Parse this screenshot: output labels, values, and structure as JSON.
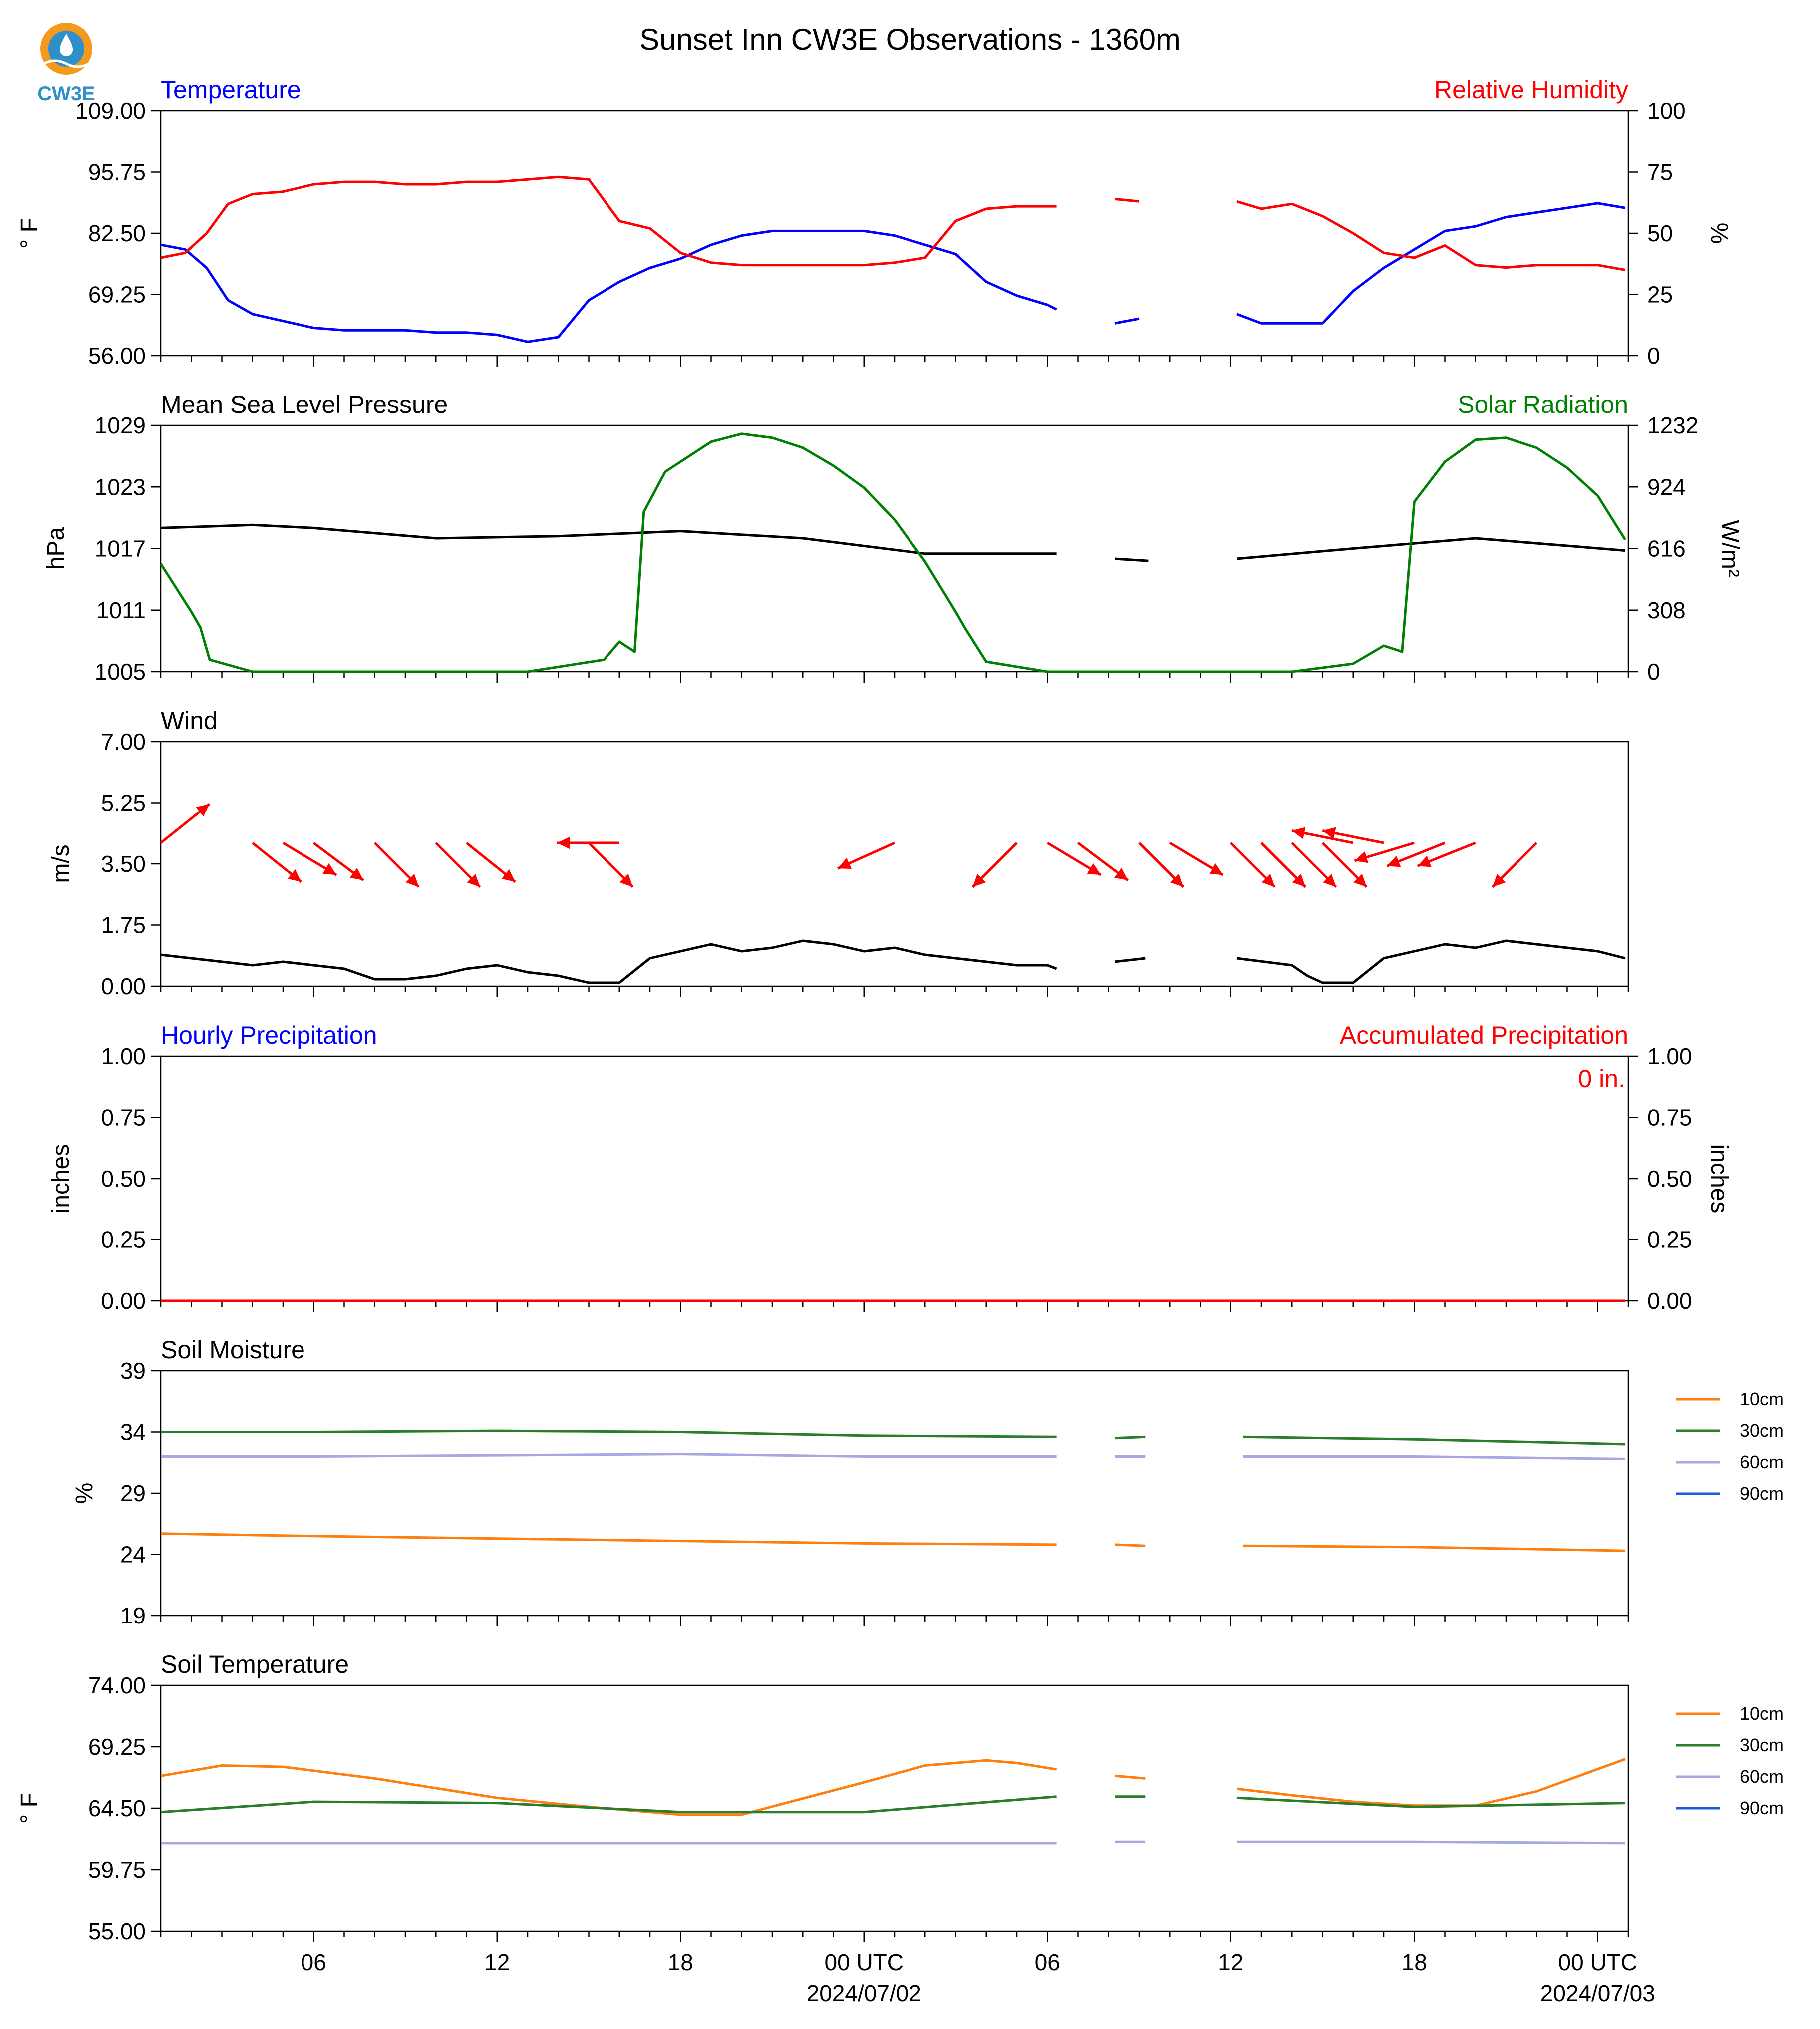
{
  "title": "Sunset Inn CW3E Observations - 1360m",
  "logo": {
    "text": "CW3E",
    "colors": {
      "sun": "#f39a1e",
      "drop": "#2e8fc9",
      "text": "#2e8fc9"
    }
  },
  "colors": {
    "temperature": "#0000ff",
    "humidity": "#ff0000",
    "pressure": "#000000",
    "solar": "#008000",
    "wind": "#000000",
    "wind_arrow": "#ff0000",
    "soil_10cm": "#ff7f0e",
    "soil_30cm": "#2a7d2a",
    "soil_60cm": "#a6a9e0",
    "soil_90cm": "#1f5bde"
  },
  "time_axis": {
    "start_hour": 1,
    "end_hour": 49,
    "tick_labels": [
      "06",
      "12",
      "18",
      "00 UTC",
      "06",
      "12",
      "18",
      "00 UTC"
    ],
    "tick_hours": [
      6,
      12,
      18,
      24,
      30,
      36,
      42,
      48
    ],
    "date_labels": [
      "2024/07/02",
      "2024/07/03"
    ]
  },
  "chart_data": [
    {
      "type": "line",
      "title_left": "Temperature",
      "title_right": "Relative Humidity",
      "ylabel_left": "° F",
      "ylabel_right": "%",
      "ylim_left": [
        56,
        109
      ],
      "ylim_right": [
        0,
        100
      ],
      "yticks_left": [
        "109.00",
        "95.75",
        "82.50",
        "69.25",
        "56.00"
      ],
      "yticks_right": [
        "100",
        "75",
        "50",
        "25",
        "0"
      ],
      "series": [
        {
          "name": "Temperature",
          "axis": "left",
          "x": [
            1,
            1.8,
            2.5,
            3.2,
            4,
            5,
            6,
            7,
            8,
            9,
            10,
            11,
            12,
            13,
            14,
            15,
            16,
            17,
            18,
            19,
            20,
            21,
            22,
            23,
            24,
            25,
            26,
            27,
            28,
            29,
            30,
            30.3,
            null,
            32.2,
            33,
            null,
            36.2,
            37,
            38,
            39,
            40,
            41,
            42,
            43,
            44,
            45,
            46,
            47,
            48,
            48.9
          ],
          "y": [
            80,
            79,
            75,
            68,
            65,
            63.5,
            62,
            61.5,
            61.5,
            61.5,
            61,
            61,
            60.5,
            59,
            60,
            68,
            72,
            75,
            77,
            80,
            82,
            83,
            83,
            83,
            83,
            82,
            80,
            78,
            72,
            69,
            67,
            66,
            null,
            63,
            64,
            null,
            65,
            63,
            63,
            63,
            70,
            75,
            79,
            83,
            84,
            86,
            87,
            88,
            89,
            88
          ]
        },
        {
          "name": "Relative Humidity",
          "axis": "right",
          "x": [
            1,
            1.8,
            2.5,
            3.2,
            4,
            5,
            6,
            7,
            8,
            9,
            10,
            11,
            12,
            13,
            14,
            15,
            16,
            17,
            18,
            19,
            20,
            21,
            22,
            23,
            24,
            25,
            26,
            27,
            28,
            29,
            30,
            30.3,
            null,
            32.2,
            33,
            null,
            36.2,
            37,
            38,
            39,
            40,
            41,
            42,
            43,
            44,
            45,
            46,
            47,
            48,
            48.9
          ],
          "y": [
            40,
            42,
            50,
            62,
            66,
            67,
            70,
            71,
            71,
            70,
            70,
            71,
            71,
            72,
            73,
            72,
            55,
            52,
            42,
            38,
            37,
            37,
            37,
            37,
            37,
            38,
            40,
            55,
            60,
            61,
            61,
            61,
            null,
            64,
            63,
            null,
            63,
            60,
            62,
            57,
            50,
            42,
            40,
            45,
            37,
            36,
            37,
            37,
            37,
            35
          ]
        }
      ]
    },
    {
      "type": "line",
      "title_left": "Mean Sea Level Pressure",
      "title_right": "Solar Radiation",
      "ylabel_left": "hPa",
      "ylabel_right": "W/m²",
      "ylim_left": [
        1005,
        1029
      ],
      "ylim_right": [
        0,
        1232
      ],
      "yticks_left": [
        "1029",
        "1023",
        "1017",
        "1011",
        "1005"
      ],
      "yticks_right": [
        "1232",
        "924",
        "616",
        "308",
        "0"
      ],
      "series": [
        {
          "name": "Mean Sea Level Pressure",
          "axis": "left",
          "x": [
            1,
            4,
            6,
            10,
            14,
            18,
            22,
            26,
            30,
            30.3,
            null,
            32.2,
            33.3,
            null,
            36.2,
            40,
            44,
            48.9
          ],
          "y": [
            1019,
            1019.3,
            1019,
            1018,
            1018.2,
            1018.7,
            1018,
            1016.5,
            1016.5,
            1016.5,
            null,
            1016,
            1015.8,
            null,
            1016,
            1017,
            1018,
            1016.8
          ]
        },
        {
          "name": "Solar Radiation",
          "axis": "right",
          "x": [
            1,
            2,
            2.3,
            2.6,
            4,
            6,
            10,
            13,
            15.5,
            16,
            16.5,
            16.8,
            17.5,
            19,
            20,
            21,
            22,
            23,
            24,
            25,
            26,
            27,
            27.3,
            28,
            30,
            33.3,
            36,
            38,
            40,
            41,
            41.6,
            42,
            43,
            44,
            45,
            46,
            47,
            48,
            48.9
          ],
          "y": [
            540,
            300,
            220,
            60,
            0,
            0,
            0,
            0,
            60,
            150,
            100,
            800,
            1000,
            1150,
            1190,
            1170,
            1120,
            1030,
            920,
            760,
            550,
            300,
            220,
            50,
            0,
            0,
            0,
            0,
            40,
            130,
            100,
            850,
            1050,
            1160,
            1170,
            1120,
            1020,
            880,
            660
          ]
        }
      ]
    },
    {
      "type": "line",
      "title_left": "Wind",
      "ylabel_left": "m/s",
      "ylim_left": [
        0,
        7
      ],
      "yticks_left": [
        "7.00",
        "5.25",
        "3.50",
        "1.75",
        "0.00"
      ],
      "series": [
        {
          "name": "Wind",
          "axis": "left",
          "x": [
            1,
            2,
            3,
            4,
            5,
            6,
            7,
            8,
            9,
            10,
            11,
            12,
            13,
            14,
            15,
            16,
            17,
            18,
            19,
            20,
            21,
            22,
            23,
            24,
            25,
            26,
            27,
            28,
            29,
            30,
            30.3,
            null,
            32.2,
            33.2,
            null,
            36.2,
            38,
            38.5,
            39,
            40,
            41,
            42,
            43,
            44,
            45,
            46,
            47,
            48,
            48.9
          ],
          "y": [
            0.9,
            0.8,
            0.7,
            0.6,
            0.7,
            0.6,
            0.5,
            0.2,
            0.2,
            0.3,
            0.5,
            0.6,
            0.4,
            0.3,
            0.1,
            0.1,
            0.8,
            1.0,
            1.2,
            1.0,
            1.1,
            1.3,
            1.2,
            1.0,
            1.1,
            0.9,
            0.8,
            0.7,
            0.6,
            0.6,
            0.5,
            null,
            0.7,
            0.8,
            null,
            0.8,
            0.6,
            0.3,
            0.1,
            0.1,
            0.8,
            1.0,
            1.2,
            1.1,
            1.3,
            1.2,
            1.1,
            1.0,
            0.8
          ]
        }
      ],
      "wind_arrows": {
        "x": [
          1,
          4,
          5,
          6,
          8,
          10,
          11,
          15,
          16,
          25,
          29,
          30,
          31,
          33,
          34,
          36,
          37,
          38,
          39,
          40,
          41,
          42,
          43,
          44,
          46
        ],
        "y_level": 4.1,
        "dx": [
          1,
          1,
          1,
          0.8,
          0.8,
          0.8,
          1,
          0.8,
          -1,
          -1,
          -0.8,
          1,
          0.8,
          0.8,
          1,
          0.8,
          0.8,
          0.8,
          0.8,
          -1,
          -1,
          -1,
          -1,
          -1,
          -0.8
        ],
        "dy": [
          0.8,
          -0.8,
          -0.6,
          -0.6,
          -0.8,
          -0.8,
          -0.8,
          -0.8,
          0,
          -0.45,
          -0.8,
          -0.6,
          -0.6,
          -0.8,
          -0.6,
          -0.8,
          -0.8,
          -0.8,
          -0.8,
          0.2,
          0.2,
          -0.3,
          -0.4,
          -0.4,
          -0.8
        ]
      }
    },
    {
      "type": "line",
      "title_left": "Hourly Precipitation",
      "title_right": "Accumulated Precipitation",
      "ylabel_left": "inches",
      "ylabel_right": "inches",
      "ylim_left": [
        0,
        1
      ],
      "ylim_right": [
        0,
        1
      ],
      "yticks_left": [
        "1.00",
        "0.75",
        "0.50",
        "0.25",
        "0.00"
      ],
      "yticks_right": [
        "1.00",
        "0.75",
        "0.50",
        "0.25",
        "0.00"
      ],
      "annotation": "0 in.",
      "series": [
        {
          "name": "Hourly Precipitation",
          "axis": "left",
          "x": [
            1,
            48.9
          ],
          "y": [
            0,
            0
          ]
        },
        {
          "name": "Accumulated Precipitation",
          "axis": "right",
          "x": [
            1,
            48.9
          ],
          "y": [
            0,
            0
          ]
        }
      ]
    },
    {
      "type": "line",
      "title_left": "Soil Moisture",
      "ylabel_left": "%",
      "ylim_left": [
        19,
        39
      ],
      "yticks_left": [
        "39",
        "34",
        "29",
        "24",
        "19"
      ],
      "legend": [
        "10cm",
        "30cm",
        "60cm",
        "90cm"
      ],
      "series": [
        {
          "name": "10cm",
          "axis": "left",
          "x": [
            1,
            6,
            12,
            18,
            24,
            30.3,
            null,
            32.2,
            33.2,
            null,
            36.4,
            42,
            48.9
          ],
          "y": [
            25.7,
            25.5,
            25.3,
            25.1,
            24.9,
            24.8,
            null,
            24.8,
            24.7,
            null,
            24.7,
            24.6,
            24.3
          ]
        },
        {
          "name": "30cm",
          "axis": "left",
          "x": [
            1,
            6,
            12,
            18,
            24,
            30.3,
            null,
            32.2,
            33.2,
            null,
            36.4,
            42,
            48.9
          ],
          "y": [
            34.0,
            34.0,
            34.1,
            34.0,
            33.7,
            33.6,
            null,
            33.5,
            33.6,
            null,
            33.6,
            33.4,
            33.0
          ]
        },
        {
          "name": "60cm",
          "axis": "left",
          "x": [
            1,
            6,
            12,
            18,
            24,
            30.3,
            null,
            32.2,
            33.2,
            null,
            36.4,
            42,
            48.9
          ],
          "y": [
            32.0,
            32.0,
            32.1,
            32.2,
            32.0,
            32.0,
            null,
            32.0,
            32.0,
            null,
            32.0,
            32.0,
            31.8
          ]
        }
      ]
    },
    {
      "type": "line",
      "title_left": "Soil Temperature",
      "ylabel_left": "° F",
      "ylim_left": [
        55,
        74
      ],
      "yticks_left": [
        "74.00",
        "69.25",
        "64.50",
        "59.75",
        "55.00"
      ],
      "legend": [
        "10cm",
        "30cm",
        "60cm",
        "90cm"
      ],
      "series": [
        {
          "name": "10cm",
          "axis": "left",
          "x": [
            1,
            3,
            5,
            8,
            12,
            15,
            18,
            20,
            24,
            26,
            28,
            29,
            30.3,
            null,
            32.2,
            33.2,
            null,
            36.2,
            38,
            40,
            42,
            44,
            46,
            48.9
          ],
          "y": [
            67.0,
            67.8,
            67.7,
            66.8,
            65.3,
            64.6,
            64.0,
            64.0,
            66.5,
            67.8,
            68.2,
            68.0,
            67.5,
            null,
            67.0,
            66.8,
            null,
            66.0,
            65.5,
            65.0,
            64.7,
            64.7,
            65.8,
            68.3
          ]
        },
        {
          "name": "30cm",
          "axis": "left",
          "x": [
            1,
            6,
            12,
            18,
            24,
            30.3,
            null,
            32.2,
            33.2,
            null,
            36.2,
            42,
            48.9
          ],
          "y": [
            64.2,
            65.0,
            64.9,
            64.2,
            64.2,
            65.4,
            null,
            65.4,
            65.4,
            null,
            65.3,
            64.6,
            64.9
          ]
        },
        {
          "name": "60cm",
          "axis": "left",
          "x": [
            1,
            6,
            12,
            18,
            24,
            30.3,
            null,
            32.2,
            33.2,
            null,
            36.2,
            42,
            48.9
          ],
          "y": [
            61.8,
            61.8,
            61.8,
            61.8,
            61.8,
            61.8,
            null,
            61.9,
            61.9,
            null,
            61.9,
            61.9,
            61.8
          ]
        }
      ]
    }
  ]
}
